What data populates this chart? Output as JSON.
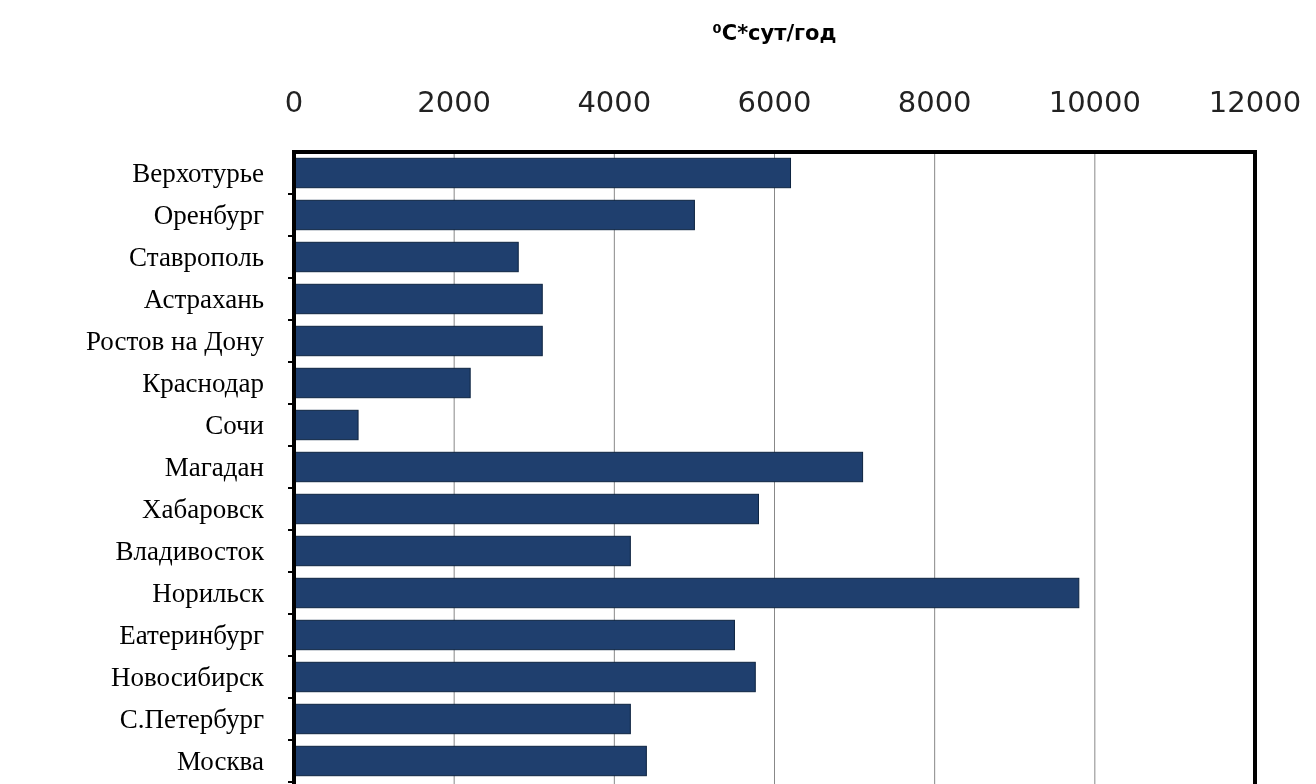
{
  "chart_data": {
    "type": "bar",
    "orientation": "horizontal",
    "xlabel": "⁰C*сут/год",
    "categories": [
      "Верхотурье",
      "Оренбург",
      "Ставрополь",
      "Астрахань",
      "Ростов на Дону",
      "Краснодар",
      "Сочи",
      "Магадан",
      "Хабаровск",
      "Владивосток",
      "Норильск",
      "Еатеринбург",
      "Новосибирск",
      "С.Петербург",
      "Москва"
    ],
    "values": [
      6200,
      5000,
      2800,
      3100,
      3100,
      2200,
      800,
      7100,
      5800,
      4200,
      9800,
      5500,
      5760,
      4200,
      4400
    ],
    "color": "#1f3f6e",
    "xlim": [
      0,
      12000
    ],
    "xticks": [
      0,
      2000,
      4000,
      6000,
      8000,
      10000,
      12000
    ],
    "grid": "x"
  }
}
